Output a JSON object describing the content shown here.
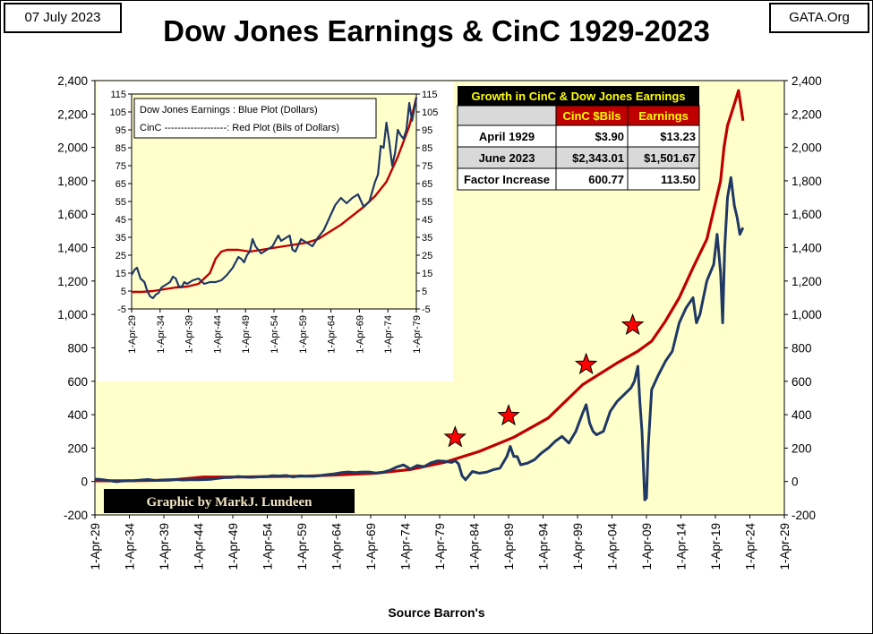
{
  "header": {
    "date": "07 July 2023",
    "site": "GATA.Org",
    "title": "Dow Jones Earnings & CinC 1929-2023"
  },
  "footer": {
    "source": "Source Barron's",
    "credit": "Graphic by MarkJ. Lundeen"
  },
  "colors": {
    "plot_bg": "#ffffcc",
    "dow_earnings": "#1f3864",
    "cinc": "#c00000",
    "star": "#ff0000",
    "table_header_bg": "#000000",
    "table_header_text": "#ffff00",
    "table_subheader_bg": "#c00000",
    "table_subheader_text": "#ffff00",
    "table_shade": "#d9d9d9"
  },
  "chart_data": [
    {
      "type": "line",
      "x_ticks": [
        "1-Apr-29",
        "1-Apr-34",
        "1-Apr-39",
        "1-Apr-44",
        "1-Apr-49",
        "1-Apr-54",
        "1-Apr-59",
        "1-Apr-64",
        "1-Apr-69",
        "1-Apr-74",
        "1-Apr-79",
        "1-Apr-84",
        "1-Apr-89",
        "1-Apr-94",
        "1-Apr-99",
        "1-Apr-04",
        "1-Apr-09",
        "1-Apr-14",
        "1-Apr-19",
        "1-Apr-24",
        "1-Apr-29"
      ],
      "xlim": [
        1929.25,
        2029.25
      ],
      "ylim": [
        -200,
        2400
      ],
      "y_ticks": [
        "-200",
        "0",
        "200",
        "400",
        "600",
        "800",
        "1,000",
        "1,200",
        "1,400",
        "1,600",
        "1,800",
        "2,000",
        "2,200",
        "2,400"
      ],
      "xlabel": "Source Barron's",
      "grid": false,
      "series": [
        {
          "key": "dow_earnings",
          "x": [
            1929.25,
            1930,
            1931,
            1932,
            1932.5,
            1933,
            1934,
            1935,
            1936,
            1937,
            1938,
            1939,
            1940,
            1941,
            1942,
            1943,
            1944,
            1945,
            1946,
            1947,
            1948,
            1949,
            1950,
            1951,
            1952,
            1953,
            1954,
            1955,
            1956,
            1957,
            1958,
            1959,
            1960,
            1961,
            1962,
            1963,
            1964,
            1965,
            1966,
            1967,
            1968,
            1969,
            1970,
            1971,
            1972,
            1973,
            1974,
            1975,
            1976,
            1977,
            1978,
            1979,
            1980,
            1981,
            1981.5,
            1982,
            1982.5,
            1983,
            1984,
            1985,
            1986,
            1987,
            1988,
            1989,
            1989.5,
            1990,
            1990.5,
            1991,
            1992,
            1993,
            1994,
            1995,
            1996,
            1997,
            1998,
            1999,
            2000,
            2000.5,
            2001,
            2001.5,
            2002,
            2003,
            2004,
            2005,
            2006,
            2007,
            2007.5,
            2008,
            2008.3,
            2008.6,
            2009,
            2009.25,
            2009.5,
            2010,
            2011,
            2012,
            2013,
            2014,
            2015,
            2016,
            2016.5,
            2017,
            2018,
            2019,
            2019.5,
            2020,
            2020.3,
            2020.6,
            2021,
            2021.5,
            2022,
            2022.4,
            2022.8,
            2023.25
          ],
          "values": [
            14,
            13,
            7,
            1,
            -1,
            2,
            4,
            5,
            9,
            12,
            6,
            9,
            10,
            12,
            9,
            10,
            10,
            11,
            13,
            18,
            23,
            24,
            30,
            26,
            25,
            28,
            29,
            35,
            33,
            36,
            27,
            34,
            32,
            31,
            36,
            41,
            46,
            53,
            57,
            53,
            57,
            57,
            51,
            55,
            67,
            86,
            99,
            75,
            96,
            89,
            112,
            124,
            121,
            114,
            125,
            105,
            35,
            10,
            60,
            50,
            55,
            70,
            80,
            150,
            210,
            150,
            150,
            100,
            110,
            130,
            170,
            200,
            240,
            270,
            230,
            300,
            410,
            460,
            350,
            300,
            280,
            300,
            420,
            480,
            520,
            560,
            600,
            690,
            470,
            300,
            -110,
            -100,
            200,
            550,
            640,
            720,
            780,
            950,
            1040,
            1100,
            950,
            1000,
            1200,
            1300,
            1480,
            1250,
            950,
            1400,
            1700,
            1820,
            1650,
            1580,
            1480,
            1520
          ]
        },
        {
          "key": "cinc",
          "x": [
            1929.25,
            1935,
            1940,
            1945,
            1950,
            1955,
            1960,
            1965,
            1970,
            1975,
            1980,
            1985,
            1990,
            1995,
            2000,
            2005,
            2008,
            2010,
            2012,
            2014,
            2016,
            2018,
            2020,
            2020.5,
            2021,
            2022,
            2022.6,
            2023.25
          ],
          "values": [
            4,
            5,
            8,
            27,
            27,
            30,
            32,
            40,
            50,
            72,
            115,
            180,
            265,
            380,
            580,
            710,
            780,
            840,
            960,
            1100,
            1280,
            1450,
            1800,
            2000,
            2130,
            2260,
            2340,
            2160
          ]
        }
      ],
      "stars": [
        {
          "x": 1981.5,
          "y": 263
        },
        {
          "x": 1989.25,
          "y": 393
        },
        {
          "x": 2000.5,
          "y": 700
        },
        {
          "x": 2007.25,
          "y": 935
        }
      ]
    },
    {
      "type": "line",
      "x_ticks": [
        "1-Apr-29",
        "1-Apr-34",
        "1-Apr-39",
        "1-Apr-44",
        "1-Apr-49",
        "1-Apr-54",
        "1-Apr-59",
        "1-Apr-64",
        "1-Apr-69",
        "1-Apr-74",
        "1-Apr-79"
      ],
      "xlim": [
        1929.25,
        1979.25
      ],
      "ylim": [
        -5,
        115
      ],
      "y_ticks": [
        "-5",
        "5",
        "15",
        "25",
        "35",
        "45",
        "55",
        "65",
        "75",
        "85",
        "95",
        "105",
        "115"
      ],
      "legend": {
        "position": "top-left",
        "blue": "Dow Jones Earnings : Blue Plot (Dollars)",
        "red": "CinC -------------------: Red Plot (Bils of Dollars)"
      },
      "series": [
        {
          "key": "dow_earnings",
          "x": [
            1929.25,
            1929.8,
            1930.2,
            1930.8,
            1931.5,
            1932,
            1932.5,
            1933,
            1933.5,
            1934,
            1934.5,
            1935,
            1936,
            1936.5,
            1937,
            1937.5,
            1938,
            1938.5,
            1939,
            1940,
            1941,
            1942,
            1943,
            1944,
            1945,
            1946,
            1947,
            1948,
            1948.5,
            1949,
            1949.5,
            1950,
            1950.5,
            1951,
            1952,
            1953,
            1954,
            1955,
            1955.5,
            1956,
            1957,
            1957.5,
            1958,
            1959,
            1960,
            1961,
            1962,
            1963,
            1964,
            1965,
            1966,
            1967,
            1968,
            1969,
            1970,
            1971,
            1972,
            1972.5,
            1973,
            1973.5,
            1974,
            1974.5,
            1975,
            1975.5,
            1976,
            1976.5,
            1977,
            1977.5,
            1978,
            1978.5,
            1979.25
          ],
          "values": [
            14,
            17,
            18,
            12,
            10,
            5,
            2,
            1,
            3,
            4,
            7,
            8,
            10,
            13,
            12,
            8,
            7,
            10,
            9,
            11,
            12,
            9,
            10,
            10,
            11,
            14,
            18,
            24,
            23,
            21,
            25,
            27,
            34,
            30,
            26,
            28,
            30,
            36,
            33,
            34,
            36,
            28,
            27,
            34,
            32,
            30,
            35,
            39,
            46,
            53,
            57,
            54,
            57,
            59,
            52,
            55,
            66,
            70,
            86,
            85,
            99,
            88,
            75,
            82,
            95,
            92,
            90,
            95,
            110,
            100,
            113
          ]
        },
        {
          "key": "cinc",
          "x": [
            1929.25,
            1931,
            1933,
            1935,
            1937,
            1939,
            1941,
            1943,
            1944,
            1945,
            1946,
            1948,
            1950,
            1952,
            1954,
            1956,
            1958,
            1960,
            1962,
            1964,
            1966,
            1968,
            1970,
            1972,
            1974,
            1976,
            1978,
            1979.25
          ],
          "values": [
            4.5,
            4.5,
            5,
            6,
            7,
            7.5,
            9,
            15,
            23,
            27,
            28,
            28,
            27,
            28,
            29,
            30,
            31,
            32,
            34,
            38,
            42,
            47,
            52,
            58,
            66,
            80,
            97,
            113
          ]
        }
      ]
    }
  ],
  "growth_table": {
    "title": "Growth in CinC & Dow Jones Earnings",
    "col_headers": [
      "CinC $Bils",
      "Earnings"
    ],
    "rows": [
      {
        "label": "April 1929",
        "cinc": "$3.90",
        "earnings": "$13.23"
      },
      {
        "label": "June 2023",
        "cinc": "$2,343.01",
        "earnings": "$1,501.67"
      },
      {
        "label": "Factor Increase",
        "cinc": "600.77",
        "earnings": "113.50"
      }
    ]
  }
}
